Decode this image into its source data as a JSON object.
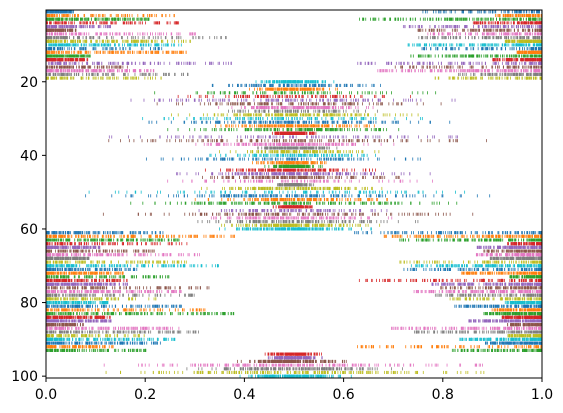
{
  "chart_data": {
    "type": "eventplot",
    "title": "",
    "xlabel": "",
    "ylabel": "",
    "xlim": [
      0.0,
      1.0
    ],
    "ylim": [
      100.5,
      0.5
    ],
    "y_inverted": true,
    "grid": false,
    "legend": "none",
    "x_ticks": [
      0.0,
      0.2,
      0.4,
      0.6,
      0.8,
      1.0
    ],
    "x_tick_labels": [
      "0.0",
      "0.2",
      "0.4",
      "0.6",
      "0.8",
      "1.0"
    ],
    "y_ticks": [
      20,
      40,
      60,
      80,
      100
    ],
    "y_tick_labels": [
      "20",
      "40",
      "60",
      "80",
      "100"
    ],
    "n_rows": 100,
    "row_colors": [
      "#1f77b4",
      "#ff7f0e",
      "#2ca02c",
      "#d62728",
      "#9467bd",
      "#8c564b",
      "#e377c2",
      "#7f7f7f",
      "#bcbd22",
      "#17becf"
    ],
    "row_event_distribution": {
      "description_rows_1_to_19": "events dense near x=0 and x=1",
      "description_rows_20_to_60": "events dense near x=0.5",
      "description_rows_61_to_93": "events dense near x=0 and x=1",
      "description_rows_94_to_100": "events dense near x=0.5"
    }
  }
}
